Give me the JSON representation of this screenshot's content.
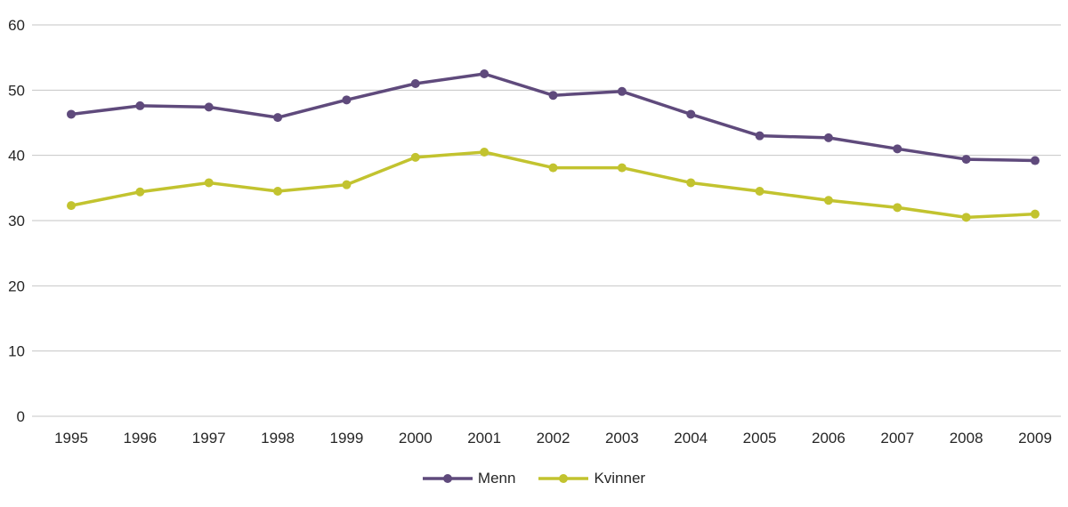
{
  "chart_data": {
    "type": "line",
    "title": "",
    "xlabel": "",
    "ylabel": "",
    "categories": [
      "1995",
      "1996",
      "1997",
      "1998",
      "1999",
      "2000",
      "2001",
      "2002",
      "2003",
      "2004",
      "2005",
      "2006",
      "2007",
      "2008",
      "2009"
    ],
    "series": [
      {
        "name": "Menn",
        "color": "#5f4a7c",
        "values": [
          46.3,
          47.6,
          47.4,
          45.8,
          48.5,
          51.0,
          52.5,
          49.2,
          49.8,
          46.3,
          43.0,
          42.7,
          41.0,
          39.4,
          39.2
        ]
      },
      {
        "name": "Kvinner",
        "color": "#c2c32f",
        "values": [
          32.3,
          34.4,
          35.8,
          34.5,
          35.5,
          39.7,
          40.5,
          38.1,
          38.1,
          35.8,
          34.5,
          33.1,
          32.0,
          30.5,
          31.0
        ]
      }
    ],
    "ylim": [
      0,
      60
    ],
    "yticks": [
      0,
      10,
      20,
      30,
      40,
      50,
      60
    ],
    "grid": true,
    "grid_color": "#c6c6c6",
    "text_color": "#262626",
    "legend_position": "bottom"
  }
}
